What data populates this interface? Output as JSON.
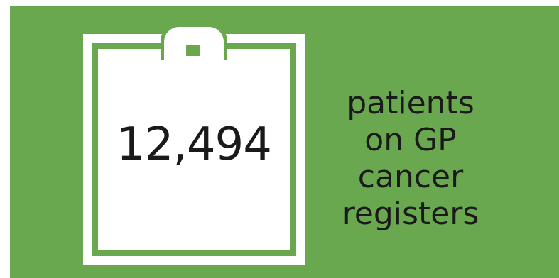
{
  "stat": {
    "value": "12,494",
    "caption_lines": [
      "patients",
      "on GP",
      "cancer",
      "registers"
    ]
  },
  "icon": "clipboard-icon",
  "colors": {
    "background": "#6aa84f",
    "foreground": "#ffffff",
    "text": "#1a1a1a"
  }
}
